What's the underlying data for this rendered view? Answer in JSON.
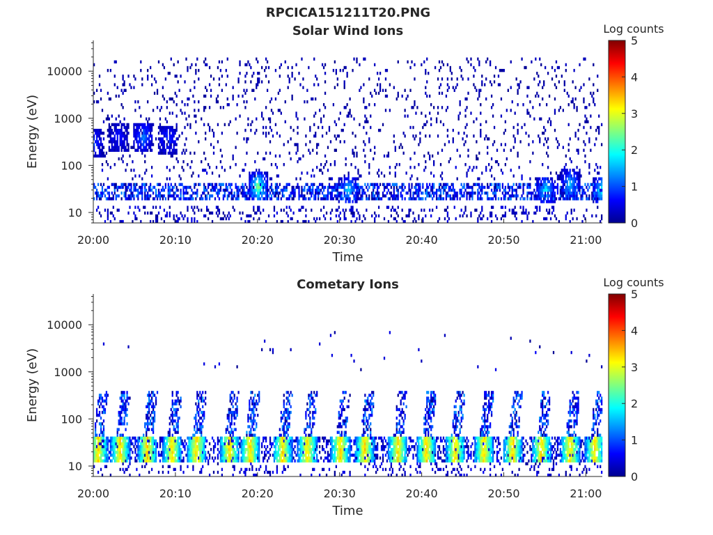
{
  "figure_title": "RPCICA151211T20.PNG",
  "colors": {
    "axis": "#262626",
    "colormap": [
      "#00008f",
      "#0000ff",
      "#0080ff",
      "#00ffff",
      "#80ff80",
      "#ffff00",
      "#ff8000",
      "#ff0000",
      "#800000"
    ]
  },
  "chart_data": [
    {
      "type": "heatmap",
      "title": "Solar Wind Ions",
      "xlabel": "Time",
      "ylabel": "Energy (eV)",
      "xlim": [
        "20:00",
        "21:02"
      ],
      "ylim": [
        6,
        45000
      ],
      "yscale": "log",
      "x_ticks": [
        "20:00",
        "20:10",
        "20:20",
        "20:30",
        "20:40",
        "20:50",
        "21:00"
      ],
      "y_ticks": [
        10,
        100,
        1000,
        10000
      ],
      "y_tick_labels": [
        "10",
        "100",
        "1000",
        "10000"
      ],
      "colorbar": {
        "label": "Log counts",
        "range": [
          0,
          5
        ],
        "ticks": [
          "0",
          "1",
          "2",
          "3",
          "4",
          "5"
        ]
      },
      "features": {
        "low_energy_band_eV": [
          18,
          40
        ],
        "low_energy_peak_log_counts": 3.0,
        "sparse_background_eV": [
          100,
          20000
        ],
        "background_log_counts": 0.3,
        "bursts": [
          {
            "time": "20:00",
            "eV": 300,
            "log_counts": 0.8
          },
          {
            "time": "20:03",
            "eV": 400,
            "log_counts": 0.6
          },
          {
            "time": "20:06",
            "eV": 400,
            "log_counts": 1.2
          },
          {
            "time": "20:09",
            "eV": 350,
            "log_counts": 0.8
          },
          {
            "time": "20:20",
            "eV": 35,
            "log_counts": 2.6
          },
          {
            "time": "20:31",
            "eV": 30,
            "log_counts": 1.6
          },
          {
            "time": "20:55",
            "eV": 30,
            "log_counts": 1.8
          },
          {
            "time": "20:58",
            "eV": 40,
            "log_counts": 1.5
          },
          {
            "time": "21:02",
            "eV": 30,
            "log_counts": 2.2
          }
        ]
      }
    },
    {
      "type": "heatmap",
      "title": "Cometary Ions",
      "xlabel": "Time",
      "ylabel": "Energy (eV)",
      "xlim": [
        "20:00",
        "21:02"
      ],
      "ylim": [
        6,
        45000
      ],
      "yscale": "log",
      "x_ticks": [
        "20:00",
        "20:10",
        "20:20",
        "20:30",
        "20:40",
        "20:50",
        "21:00"
      ],
      "y_ticks": [
        10,
        100,
        1000,
        10000
      ],
      "y_tick_labels": [
        "10",
        "100",
        "1000",
        "10000"
      ],
      "colorbar": {
        "label": "Log counts",
        "range": [
          0,
          5
        ],
        "ticks": [
          "0",
          "1",
          "2",
          "3",
          "4",
          "5"
        ]
      },
      "features": {
        "low_energy_band_eV": [
          12,
          40
        ],
        "periodic_plumes_minutes": [
          0.5,
          3.2,
          6.5,
          9.5,
          12.5,
          16.5,
          19,
          23,
          26,
          30,
          33,
          37,
          40.5,
          44,
          47.5,
          51,
          54.5,
          58,
          61
        ],
        "plume_top_eV": 400,
        "plume_peak_log_counts": 3.0,
        "max_log_counts": 3.8
      }
    }
  ]
}
